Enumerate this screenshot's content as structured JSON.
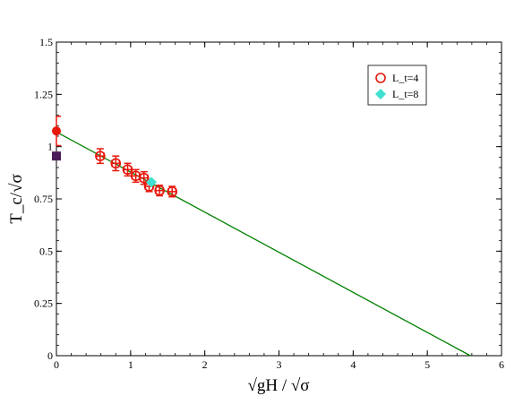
{
  "chart_data": {
    "type": "scatter",
    "xlabel": "√gH / √σ",
    "ylabel": "T_c/√σ",
    "xlim": [
      0,
      6
    ],
    "ylim": [
      0,
      1.5
    ],
    "x_ticks": [
      "0",
      "1",
      "2",
      "3",
      "4",
      "5",
      "6"
    ],
    "y_ticks": [
      "0",
      "0.25",
      "0.5",
      "0.75",
      "1",
      "1.25",
      "1.5"
    ],
    "grid": false,
    "legend_position": "top-right",
    "colors": {
      "lt4": "#e8170c",
      "lt8": "#40e0d0",
      "fit": "#008000",
      "zero_point": "#e8170c",
      "square": "#4b1c5a"
    },
    "series": [
      {
        "name": "L_t=4",
        "marker": "open-circle",
        "points": [
          {
            "x": 0.59,
            "y": 0.955,
            "yerr": 0.035,
            "xerr": 0.05
          },
          {
            "x": 0.8,
            "y": 0.92,
            "yerr": 0.035,
            "xerr": 0.05
          },
          {
            "x": 0.96,
            "y": 0.89,
            "yerr": 0.03,
            "xerr": 0.05
          },
          {
            "x": 1.07,
            "y": 0.86,
            "yerr": 0.03,
            "xerr": 0.05
          },
          {
            "x": 1.18,
            "y": 0.85,
            "yerr": 0.03,
            "xerr": 0.05
          },
          {
            "x": 1.25,
            "y": 0.81,
            "yerr": 0.025,
            "xerr": 0.05
          },
          {
            "x": 1.39,
            "y": 0.79,
            "yerr": 0.025,
            "xerr": 0.05
          },
          {
            "x": 1.56,
            "y": 0.785,
            "yerr": 0.025,
            "xerr": 0.05
          }
        ]
      },
      {
        "name": "L_t=8",
        "marker": "filled-diamond",
        "points": [
          {
            "x": 1.28,
            "y": 0.83
          }
        ]
      }
    ],
    "extra_points": [
      {
        "x": 0.0,
        "y": 1.075,
        "yerr_up": 0.07,
        "yerr_down": 0.07,
        "marker": "filled-circle"
      },
      {
        "x": 0.0,
        "y": 0.955,
        "marker": "filled-square"
      }
    ],
    "fit_line": {
      "x": [
        0,
        5.58
      ],
      "y": [
        1.07,
        0
      ]
    }
  }
}
